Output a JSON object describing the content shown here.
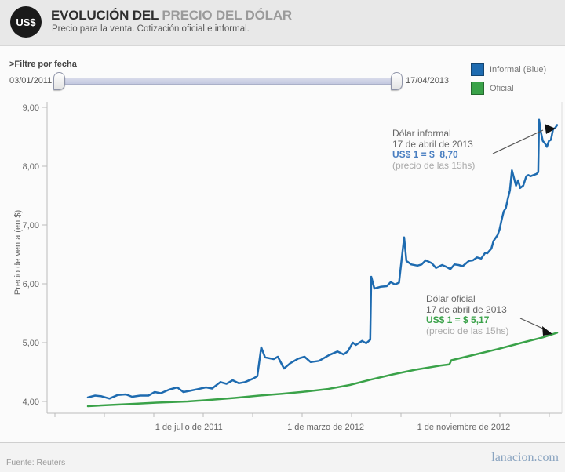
{
  "header": {
    "logo_text": "US$",
    "title_primary": "EVOLUCIÓN DEL",
    "title_secondary": " PRECIO DEL DÓLAR",
    "subtitle": "Precio para la venta. Cotización oficial e informal."
  },
  "filter": {
    "label": ">Filtre por fecha",
    "start_date": "03/01/2011",
    "end_date": "17/04/2013"
  },
  "legend": {
    "informal": {
      "label": "Informal (Blue)",
      "color": "#1e6bb0"
    },
    "oficial": {
      "label": "Oficial",
      "color": "#3aa249"
    }
  },
  "chart_data": {
    "type": "line",
    "ylabel": "Precio de venta (en $)",
    "xlabel": "",
    "ylim": [
      3.85,
      9.1
    ],
    "xlim_years": [
      2010.81,
      2013.31
    ],
    "grid": false,
    "legend_position": "top-right",
    "y_ticks": [
      {
        "value": 9,
        "label": "9,00"
      },
      {
        "value": 8,
        "label": "8,00"
      },
      {
        "value": 7,
        "label": "7,00"
      },
      {
        "value": 6,
        "label": "6,00"
      },
      {
        "value": 5,
        "label": "5,00"
      },
      {
        "value": 4,
        "label": "4,00"
      }
    ],
    "x_labels": [
      {
        "year": 2011.497,
        "label": "1 de julio de 2011"
      },
      {
        "year": 2012.163,
        "label": "1 de marzo de 2012"
      },
      {
        "year": 2012.835,
        "label": "1 de noviembre de 2012"
      }
    ],
    "series": [
      {
        "name": "Informal (Blue)",
        "color": "#1e6bb0",
        "points": [
          [
            2011.005,
            4.07
          ],
          [
            2011.04,
            4.1
          ],
          [
            2011.07,
            4.09
          ],
          [
            2011.11,
            4.05
          ],
          [
            2011.15,
            4.11
          ],
          [
            2011.19,
            4.12
          ],
          [
            2011.22,
            4.08
          ],
          [
            2011.26,
            4.1
          ],
          [
            2011.3,
            4.1
          ],
          [
            2011.33,
            4.16
          ],
          [
            2011.36,
            4.14
          ],
          [
            2011.4,
            4.2
          ],
          [
            2011.44,
            4.24
          ],
          [
            2011.47,
            4.16
          ],
          [
            2011.5,
            4.18
          ],
          [
            2011.54,
            4.21
          ],
          [
            2011.58,
            4.24
          ],
          [
            2011.61,
            4.22
          ],
          [
            2011.65,
            4.33
          ],
          [
            2011.68,
            4.3
          ],
          [
            2011.71,
            4.36
          ],
          [
            2011.74,
            4.31
          ],
          [
            2011.77,
            4.33
          ],
          [
            2011.81,
            4.39
          ],
          [
            2011.83,
            4.43
          ],
          [
            2011.849,
            4.92
          ],
          [
            2011.868,
            4.75
          ],
          [
            2011.91,
            4.72
          ],
          [
            2011.93,
            4.76
          ],
          [
            2011.96,
            4.56
          ],
          [
            2011.99,
            4.65
          ],
          [
            2012.03,
            4.73
          ],
          [
            2012.06,
            4.76
          ],
          [
            2012.09,
            4.67
          ],
          [
            2012.13,
            4.69
          ],
          [
            2012.18,
            4.79
          ],
          [
            2012.22,
            4.85
          ],
          [
            2012.25,
            4.8
          ],
          [
            2012.27,
            4.85
          ],
          [
            2012.295,
            5.0
          ],
          [
            2012.31,
            4.96
          ],
          [
            2012.34,
            5.03
          ],
          [
            2012.36,
            4.99
          ],
          [
            2012.38,
            5.05
          ],
          [
            2012.385,
            6.12
          ],
          [
            2012.4,
            5.92
          ],
          [
            2012.43,
            5.95
          ],
          [
            2012.46,
            5.96
          ],
          [
            2012.48,
            6.03
          ],
          [
            2012.5,
            5.99
          ],
          [
            2012.52,
            6.02
          ],
          [
            2012.545,
            6.79
          ],
          [
            2012.556,
            6.39
          ],
          [
            2012.58,
            6.33
          ],
          [
            2012.61,
            6.31
          ],
          [
            2012.63,
            6.33
          ],
          [
            2012.65,
            6.4
          ],
          [
            2012.68,
            6.35
          ],
          [
            2012.7,
            6.27
          ],
          [
            2012.73,
            6.32
          ],
          [
            2012.75,
            6.29
          ],
          [
            2012.77,
            6.25
          ],
          [
            2012.79,
            6.33
          ],
          [
            2012.81,
            6.32
          ],
          [
            2012.83,
            6.3
          ],
          [
            2012.86,
            6.39
          ],
          [
            2012.88,
            6.4
          ],
          [
            2012.9,
            6.45
          ],
          [
            2012.92,
            6.43
          ],
          [
            2012.94,
            6.53
          ],
          [
            2012.95,
            6.52
          ],
          [
            2012.97,
            6.6
          ],
          [
            2012.98,
            6.73
          ],
          [
            2013.0,
            6.83
          ],
          [
            2013.01,
            6.93
          ],
          [
            2013.02,
            7.09
          ],
          [
            2013.03,
            7.23
          ],
          [
            2013.04,
            7.29
          ],
          [
            2013.05,
            7.45
          ],
          [
            2013.06,
            7.59
          ],
          [
            2013.07,
            7.93
          ],
          [
            2013.09,
            7.67
          ],
          [
            2013.1,
            7.76
          ],
          [
            2013.11,
            7.63
          ],
          [
            2013.125,
            7.67
          ],
          [
            2013.14,
            7.83
          ],
          [
            2013.15,
            7.85
          ],
          [
            2013.16,
            7.83
          ],
          [
            2013.175,
            7.85
          ],
          [
            2013.19,
            7.87
          ],
          [
            2013.198,
            7.9
          ],
          [
            2013.202,
            8.79
          ],
          [
            2013.21,
            8.6
          ],
          [
            2013.22,
            8.43
          ],
          [
            2013.23,
            8.39
          ],
          [
            2013.24,
            8.33
          ],
          [
            2013.25,
            8.43
          ],
          [
            2013.26,
            8.45
          ],
          [
            2013.27,
            8.63
          ],
          [
            2013.28,
            8.65
          ],
          [
            2013.29,
            8.7
          ]
        ]
      },
      {
        "name": "Oficial",
        "color": "#3aa249",
        "points": [
          [
            2011.005,
            3.92
          ],
          [
            2011.11,
            3.94
          ],
          [
            2011.23,
            3.96
          ],
          [
            2011.34,
            3.98
          ],
          [
            2011.49,
            4.0
          ],
          [
            2011.61,
            4.03
          ],
          [
            2011.72,
            4.06
          ],
          [
            2011.84,
            4.1
          ],
          [
            2011.95,
            4.13
          ],
          [
            2012.07,
            4.17
          ],
          [
            2012.17,
            4.21
          ],
          [
            2012.28,
            4.28
          ],
          [
            2012.38,
            4.37
          ],
          [
            2012.49,
            4.46
          ],
          [
            2012.6,
            4.54
          ],
          [
            2012.72,
            4.61
          ],
          [
            2012.765,
            4.63
          ],
          [
            2012.775,
            4.7
          ],
          [
            2012.87,
            4.78
          ],
          [
            2013.0,
            4.89
          ],
          [
            2013.12,
            5.0
          ],
          [
            2013.22,
            5.09
          ],
          [
            2013.29,
            5.17
          ]
        ]
      }
    ]
  },
  "annotations": {
    "informal": {
      "line1": "Dólar informal",
      "line2": "17 de abril de 2013",
      "value": "US$ 1 = $  8,70",
      "note": "(precio de las 15hs)"
    },
    "oficial": {
      "line1": "Dólar oficial",
      "line2": "17 de abril de 2013",
      "value": "US$ 1 = $ 5,17",
      "note": "(precio de las 15hs)"
    }
  },
  "footer": {
    "source_label": "Fuente:",
    "source_value": " Reuters",
    "brand": "lanacion.com"
  }
}
